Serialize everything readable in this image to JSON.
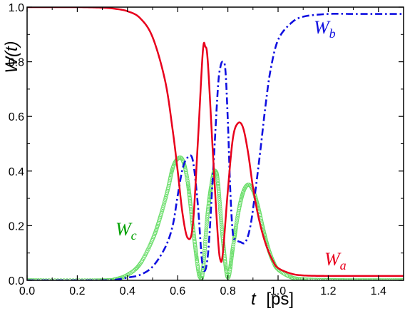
{
  "chart_data": {
    "type": "line",
    "xlabel": {
      "var": "t",
      "unit": "[ps]"
    },
    "ylabel": "W(t)",
    "xlim": [
      0.0,
      1.5
    ],
    "ylim": [
      0.0,
      1.0
    ],
    "x_ticks": [
      "0.0",
      "0.2",
      "0.4",
      "0.6",
      "0.8",
      "1.0",
      "1.2",
      "1.4"
    ],
    "y_ticks": [
      "0.0",
      "0.2",
      "0.4",
      "0.6",
      "0.8",
      "1.0"
    ],
    "grid": false,
    "series": [
      {
        "name": "Wa",
        "label_main": "W",
        "label_sub": "a",
        "color": "#e8001c",
        "style": "solid",
        "points": [
          [
            0.0,
            1.0
          ],
          [
            0.2,
            1.0
          ],
          [
            0.3,
            0.998
          ],
          [
            0.35,
            0.994
          ],
          [
            0.4,
            0.985
          ],
          [
            0.45,
            0.96
          ],
          [
            0.5,
            0.89
          ],
          [
            0.55,
            0.73
          ],
          [
            0.58,
            0.55
          ],
          [
            0.6,
            0.4
          ],
          [
            0.62,
            0.24
          ],
          [
            0.64,
            0.155
          ],
          [
            0.66,
            0.2
          ],
          [
            0.68,
            0.5
          ],
          [
            0.7,
            0.835
          ],
          [
            0.71,
            0.855
          ],
          [
            0.72,
            0.8
          ],
          [
            0.74,
            0.47
          ],
          [
            0.76,
            0.16
          ],
          [
            0.77,
            0.075
          ],
          [
            0.78,
            0.1
          ],
          [
            0.8,
            0.33
          ],
          [
            0.82,
            0.52
          ],
          [
            0.84,
            0.575
          ],
          [
            0.86,
            0.56
          ],
          [
            0.88,
            0.47
          ],
          [
            0.9,
            0.34
          ],
          [
            0.92,
            0.24
          ],
          [
            0.94,
            0.165
          ],
          [
            0.96,
            0.11
          ],
          [
            0.98,
            0.07
          ],
          [
            1.0,
            0.045
          ],
          [
            1.05,
            0.025
          ],
          [
            1.1,
            0.018
          ],
          [
            1.2,
            0.016
          ],
          [
            1.3,
            0.016
          ],
          [
            1.4,
            0.016
          ],
          [
            1.5,
            0.016
          ]
        ]
      },
      {
        "name": "Wb",
        "label_main": "W",
        "label_sub": "b",
        "color": "#1010e0",
        "style": "dash-dot",
        "points": [
          [
            0.0,
            0.0
          ],
          [
            0.3,
            0.0
          ],
          [
            0.35,
            0.002
          ],
          [
            0.4,
            0.01
          ],
          [
            0.45,
            0.02
          ],
          [
            0.5,
            0.05
          ],
          [
            0.55,
            0.12
          ],
          [
            0.58,
            0.2
          ],
          [
            0.6,
            0.31
          ],
          [
            0.62,
            0.41
          ],
          [
            0.64,
            0.45
          ],
          [
            0.66,
            0.44
          ],
          [
            0.68,
            0.28
          ],
          [
            0.7,
            0.05
          ],
          [
            0.72,
            0.09
          ],
          [
            0.74,
            0.38
          ],
          [
            0.76,
            0.7
          ],
          [
            0.77,
            0.78
          ],
          [
            0.78,
            0.8
          ],
          [
            0.79,
            0.77
          ],
          [
            0.8,
            0.58
          ],
          [
            0.81,
            0.32
          ],
          [
            0.82,
            0.17
          ],
          [
            0.83,
            0.15
          ],
          [
            0.85,
            0.14
          ],
          [
            0.87,
            0.14
          ],
          [
            0.89,
            0.2
          ],
          [
            0.91,
            0.33
          ],
          [
            0.93,
            0.48
          ],
          [
            0.95,
            0.64
          ],
          [
            0.97,
            0.77
          ],
          [
            1.0,
            0.88
          ],
          [
            1.05,
            0.94
          ],
          [
            1.1,
            0.965
          ],
          [
            1.2,
            0.975
          ],
          [
            1.3,
            0.975
          ],
          [
            1.4,
            0.975
          ],
          [
            1.5,
            0.975
          ]
        ]
      },
      {
        "name": "Wc",
        "label_main": "W",
        "label_sub": "c",
        "color": "#66dd66",
        "style": "circles",
        "points": [
          [
            0.0,
            0.0
          ],
          [
            0.3,
            0.0
          ],
          [
            0.35,
            0.004
          ],
          [
            0.4,
            0.02
          ],
          [
            0.45,
            0.06
          ],
          [
            0.5,
            0.15
          ],
          [
            0.53,
            0.23
          ],
          [
            0.56,
            0.33
          ],
          [
            0.58,
            0.41
          ],
          [
            0.6,
            0.445
          ],
          [
            0.62,
            0.44
          ],
          [
            0.64,
            0.36
          ],
          [
            0.66,
            0.2
          ],
          [
            0.68,
            0.05
          ],
          [
            0.69,
            0.01
          ],
          [
            0.7,
            0.03
          ],
          [
            0.72,
            0.25
          ],
          [
            0.74,
            0.38
          ],
          [
            0.75,
            0.4
          ],
          [
            0.76,
            0.36
          ],
          [
            0.78,
            0.15
          ],
          [
            0.8,
            0.01
          ],
          [
            0.82,
            0.12
          ],
          [
            0.84,
            0.24
          ],
          [
            0.86,
            0.32
          ],
          [
            0.88,
            0.35
          ],
          [
            0.9,
            0.33
          ],
          [
            0.92,
            0.27
          ],
          [
            0.94,
            0.19
          ],
          [
            0.96,
            0.12
          ],
          [
            0.98,
            0.07
          ],
          [
            1.0,
            0.04
          ],
          [
            1.05,
            0.012
          ],
          [
            1.1,
            0.004
          ],
          [
            1.2,
            0.001
          ],
          [
            1.3,
            0.0
          ],
          [
            1.4,
            0.0
          ],
          [
            1.5,
            0.0
          ]
        ]
      }
    ]
  }
}
